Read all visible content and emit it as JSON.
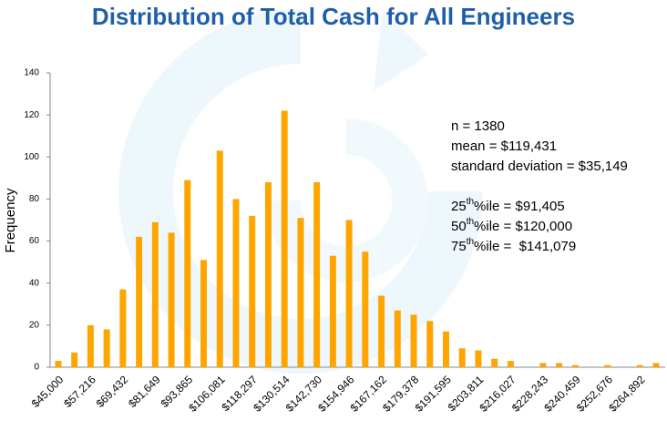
{
  "chart_data": {
    "type": "bar",
    "title": "Distribution of Total Cash for All Engineers",
    "y_label": "Frequency",
    "categories": [
      "$45,000",
      null,
      "$57,216",
      null,
      "$69,432",
      null,
      "$81,649",
      null,
      "$93,865",
      null,
      "$106,081",
      null,
      "$118,297",
      null,
      "$130,514",
      null,
      "$142,730",
      null,
      "$154,946",
      null,
      "$167,162",
      null,
      "$179,378",
      null,
      "$191,595",
      null,
      "$203,811",
      null,
      "$216,027",
      null,
      "$228,243",
      null,
      "$240,459",
      null,
      "$252,676",
      null,
      "$264,892",
      null
    ],
    "values": [
      3,
      7,
      20,
      18,
      37,
      62,
      69,
      64,
      89,
      51,
      103,
      80,
      72,
      88,
      122,
      71,
      88,
      53,
      70,
      55,
      34,
      27,
      25,
      22,
      17,
      9,
      8,
      4,
      3,
      0,
      2,
      2,
      1,
      0,
      1,
      0,
      1,
      2
    ],
    "color": "#ffa500",
    "ylim": [
      0,
      140
    ],
    "yticks": [
      0,
      20,
      40,
      60,
      80,
      100,
      120,
      140
    ],
    "stats": [
      "n = 1380",
      "mean = $119,431",
      "standard deviation = $35,149"
    ],
    "percentiles": [
      {
        "number": "25",
        "suffix": "th",
        "text": "%ile = $91,405"
      },
      {
        "number": "50",
        "suffix": "th",
        "text": "%ile = $120,000"
      },
      {
        "number": "75",
        "suffix": "th",
        "text": "%ile =  $141,079"
      }
    ]
  }
}
